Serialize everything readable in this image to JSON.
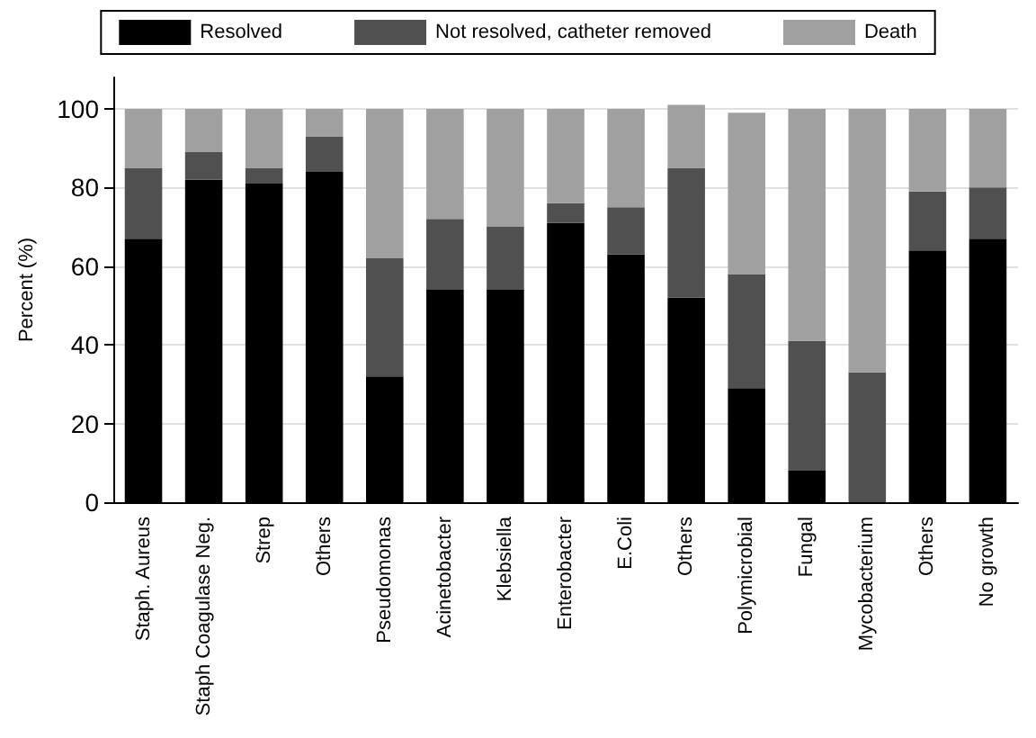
{
  "chart_data": {
    "type": "bar",
    "stacked": true,
    "ylabel": "Percent (%)",
    "categories": [
      "Staph. Aureus",
      "Staph Coagulase Neg.",
      "Strep",
      "Others",
      "Pseudomonas",
      "Acinetobacter",
      "Klebsiella",
      "Enterobacter",
      "E.Coli",
      "Others",
      "Polymicrobial",
      "Fungal",
      "Mycobacterium",
      "Others",
      "No growth"
    ],
    "series": [
      {
        "name": "Resolved",
        "color": "#000000",
        "values": [
          67,
          82,
          81,
          84,
          32,
          54,
          54,
          71,
          63,
          52,
          29,
          8,
          0,
          64,
          67
        ]
      },
      {
        "name": "Not resolved, catheter removed",
        "color": "#505050",
        "values": [
          18,
          7,
          4,
          9,
          30,
          18,
          16,
          5,
          12,
          33,
          29,
          33,
          33,
          15,
          13
        ]
      },
      {
        "name": "Death",
        "color": "#a0a0a0",
        "values": [
          15,
          11,
          15,
          7,
          38,
          28,
          30,
          24,
          25,
          16,
          41,
          59,
          67,
          21,
          20
        ]
      }
    ],
    "ylim": [
      0,
      108
    ],
    "yticks": [
      0,
      20,
      40,
      60,
      80,
      100
    ],
    "grid": "y",
    "legend": "top"
  }
}
